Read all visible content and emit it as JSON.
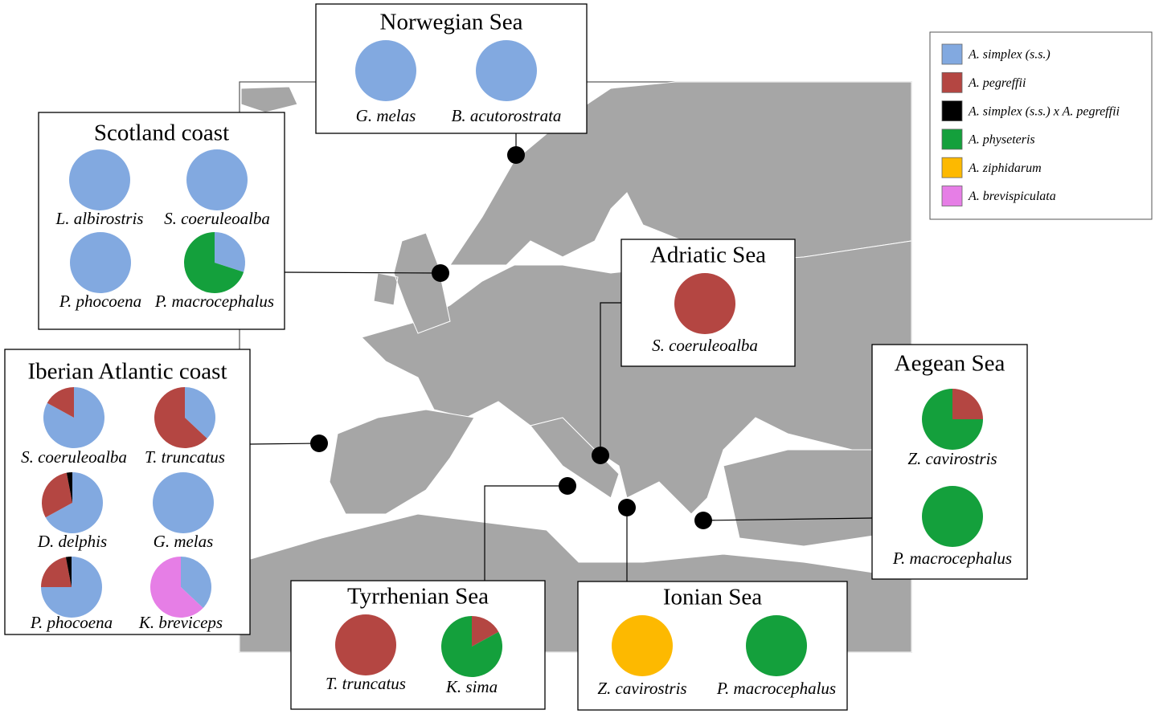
{
  "legend": [
    {
      "label": "A. simplex (s.s.)",
      "color": "#82a9e0"
    },
    {
      "label": "A. pegreffii",
      "color": "#b44642"
    },
    {
      "label": "A. simplex (s.s.) x A. pegreffii",
      "color": "#000000"
    },
    {
      "label": "A. physeteris",
      "color": "#14a03c"
    },
    {
      "label": "A. ziphidarum",
      "color": "#fdb900"
    },
    {
      "label": "A. brevispiculata",
      "color": "#e67ee6"
    }
  ],
  "regions": [
    {
      "name": "Norwegian Sea",
      "hosts": [
        {
          "name": "G. melas",
          "values": [
            100,
            0,
            0,
            0,
            0,
            0
          ]
        },
        {
          "name": "B. acutorostrata",
          "values": [
            100,
            0,
            0,
            0,
            0,
            0
          ]
        }
      ]
    },
    {
      "name": "Scotland coast",
      "hosts": [
        {
          "name": "L. albirostris",
          "values": [
            100,
            0,
            0,
            0,
            0,
            0
          ]
        },
        {
          "name": "S. coeruleoalba",
          "values": [
            100,
            0,
            0,
            0,
            0,
            0
          ]
        },
        {
          "name": "P. phocoena",
          "values": [
            100,
            0,
            0,
            0,
            0,
            0
          ]
        },
        {
          "name": "P. macrocephalus",
          "values": [
            30,
            0,
            0,
            70,
            0,
            0
          ]
        }
      ]
    },
    {
      "name": "Iberian Atlantic coast",
      "hosts": [
        {
          "name": "S. coeruleoalba",
          "values": [
            83,
            17,
            0,
            0,
            0,
            0
          ]
        },
        {
          "name": "T. truncatus",
          "values": [
            37,
            63,
            0,
            0,
            0,
            0
          ]
        },
        {
          "name": "D. delphis",
          "values": [
            67,
            30,
            3,
            0,
            0,
            0
          ]
        },
        {
          "name": "G. melas",
          "values": [
            100,
            0,
            0,
            0,
            0,
            0
          ]
        },
        {
          "name": "P. phocoena",
          "values": [
            75,
            22,
            3,
            0,
            0,
            0
          ]
        },
        {
          "name": "K. breviceps",
          "values": [
            37,
            0,
            0,
            0,
            0,
            63
          ]
        }
      ]
    },
    {
      "name": "Adriatic Sea",
      "hosts": [
        {
          "name": "S. coeruleoalba",
          "values": [
            0,
            100,
            0,
            0,
            0,
            0
          ]
        }
      ]
    },
    {
      "name": "Aegean Sea",
      "hosts": [
        {
          "name": "Z. cavirostris",
          "values": [
            0,
            25,
            0,
            75,
            0,
            0
          ]
        },
        {
          "name": "P. macrocephalus",
          "values": [
            0,
            0,
            0,
            100,
            0,
            0
          ]
        }
      ]
    },
    {
      "name": "Tyrrhenian Sea",
      "hosts": [
        {
          "name": "T. truncatus",
          "values": [
            0,
            100,
            0,
            0,
            0,
            0
          ]
        },
        {
          "name": "K. sima",
          "values": [
            0,
            17,
            0,
            83,
            0,
            0
          ]
        }
      ]
    },
    {
      "name": "Ionian Sea",
      "hosts": [
        {
          "name": "Z. cavirostris",
          "values": [
            0,
            0,
            0,
            0,
            100,
            0
          ]
        },
        {
          "name": "P. macrocephalus",
          "values": [
            0,
            0,
            0,
            100,
            0,
            0
          ]
        }
      ]
    }
  ]
}
